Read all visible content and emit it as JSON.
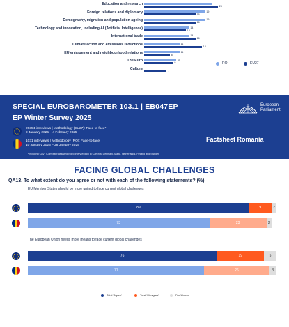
{
  "top_chart": {
    "categories": [
      "Education and research",
      "Foreign relations and diplomacy",
      "Demography, migration and population ageing",
      "Technology and innovation, including AI (Artificial Intelligence)",
      "International trade",
      "Climate action and emissions reductions",
      "EU enlargement and neighbourhood relations",
      "The Euro",
      "Culture"
    ],
    "ro_values": [
      21,
      19,
      19,
      14,
      14,
      11,
      11,
      10,
      null
    ],
    "eu_values": [
      23,
      16,
      16,
      13,
      16,
      18,
      8,
      9,
      7
    ],
    "ro_labels": [
      "",
      "19",
      "19",
      "14",
      "14",
      "11",
      "11",
      "10",
      ""
    ],
    "eu_labels": [
      "23",
      "16",
      "16",
      "13",
      "16",
      "18",
      "8",
      "9",
      "7"
    ],
    "legend": {
      "ro": "RO",
      "eu": "EU27"
    },
    "colors": {
      "ro": "#7fa6e8",
      "eu": "#1c3f91"
    }
  },
  "header": {
    "title_line1": "SPECIAL EUROBAROMETER 103.1 | EB047EP",
    "title_line2": "EP Winter Survey 2025",
    "eu_method": "26354 interviews | Methodology (EU27): Face-to-face*",
    "eu_dates": "9 January 2025 – 4 February 2025",
    "ro_method": "1031 interviews | Methodology (RO): Face-to-face",
    "ro_dates": "10 January 2025 – 28 January 2025",
    "footnote": "*including CAVI (Computer-assisted video interviewing) in Czechia, Denmark, Malta, Netherlands, Finland and Sweden",
    "logo_text_line1": "European",
    "logo_text_line2": "Parliament",
    "factsheet": "Factsheet Romania"
  },
  "body": {
    "section_title": "FACING GLOBAL CHALLENGES",
    "question": "QA13. To what extent do you agree or not with each of the following statements? (%)",
    "statements": [
      {
        "text": "EU Member States should be more united to face current global challenges",
        "eu": {
          "agree": 89,
          "disagree": 9,
          "dont_know": 2
        },
        "ro": {
          "agree": 73,
          "disagree": 23,
          "dont_know": 2
        }
      },
      {
        "text": "The European Union needs more means to face current global challenges",
        "eu": {
          "agree": 76,
          "disagree": 19,
          "dont_know": 5
        },
        "ro": {
          "agree": 71,
          "disagree": 26,
          "dont_know": 3
        }
      }
    ],
    "legend": {
      "agree": "Total 'Agree'",
      "disagree": "Total 'Disagree'",
      "dont_know": "Don't know"
    },
    "colors": {
      "eu_agree": "#1c3f91",
      "ro_agree": "#7fa6e8",
      "eu_disagree": "#ff5a1f",
      "ro_disagree": "#ffab8c",
      "dont_know": "#dedede"
    }
  }
}
